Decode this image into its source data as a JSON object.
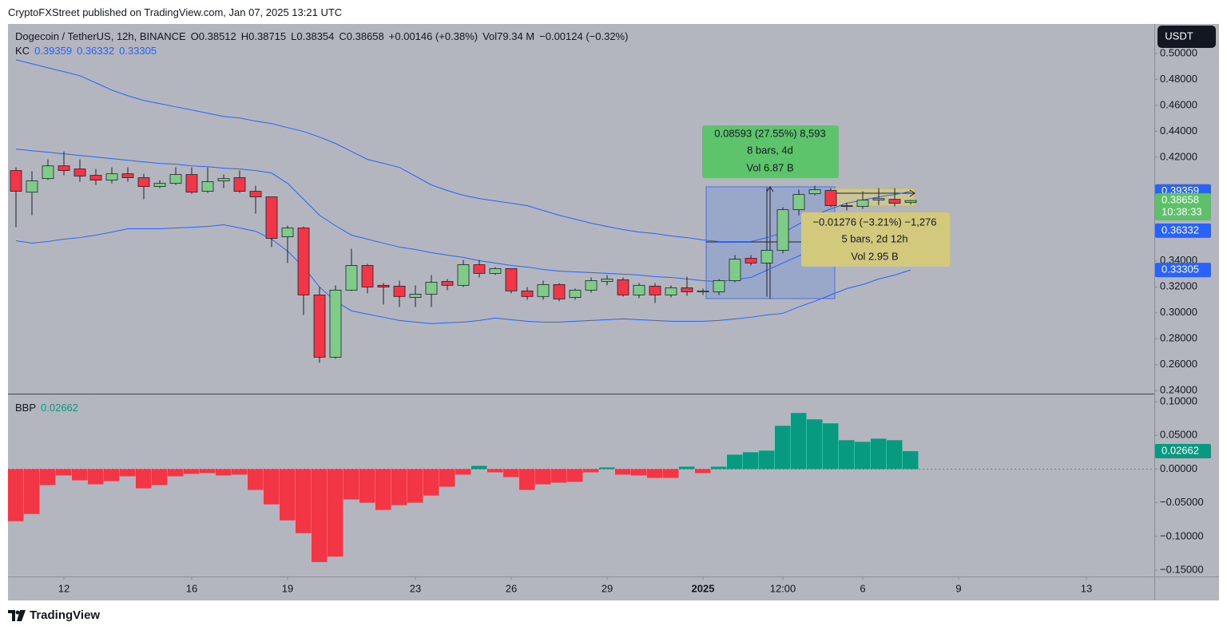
{
  "header": {
    "published": "CryptoFXStreet published on TradingView.com, Jan 07, 2025 13:21 UTC",
    "currency": "USDT",
    "brand": "TradingView"
  },
  "legend": {
    "symbol": "Dogecoin / TetherUS, 12h, BINANCE",
    "items": [
      "O0.38512",
      "H0.38715",
      "L0.38354",
      "C0.38658",
      "+0.00146 (+0.38%)",
      "Vol79.34 M",
      "−0.00124 (−0.32%)"
    ],
    "indicator": "KC",
    "indicator_values": [
      "0.39359",
      "0.36332",
      "0.33305"
    ]
  },
  "measure": {
    "up": [
      "0.08593 (27.55%) 8,593",
      "8 bars, 4d",
      "Vol 6.87 B"
    ],
    "down": [
      "−0.01276 (−3.21%) −1,276",
      "5 bars, 2d 12h",
      "Vol 2.95 B"
    ]
  },
  "chart_data": [
    {
      "type": "candlestick",
      "up_color": "#7fcc88",
      "down_color": "#f23645",
      "open": [
        0.4097,
        0.393,
        0.4035,
        0.4133,
        0.4109,
        0.406,
        0.4023,
        0.4072,
        0.4042,
        0.3974,
        0.3998,
        0.4066,
        0.3937,
        0.4017,
        0.4042,
        0.3937,
        0.3894,
        0.3586,
        0.3654,
        0.3138,
        0.2658,
        0.3175,
        0.3365,
        0.3212,
        0.3206,
        0.3119,
        0.3144,
        0.3242,
        0.3212,
        0.3371,
        0.3304,
        0.3341,
        0.3169,
        0.3126,
        0.3218,
        0.3119,
        0.3175,
        0.3242,
        0.3255,
        0.3138,
        0.3206,
        0.3138,
        0.3193,
        0.3162,
        0.3162,
        0.3248,
        0.342,
        0.3384,
        0.3482,
        0.3795,
        0.3918,
        0.3943,
        0.3826,
        0.382,
        0.3869,
        0.3875,
        0.38512
      ],
      "high": [
        0.4121,
        0.4091,
        0.4183,
        0.4244,
        0.4183,
        0.4109,
        0.4121,
        0.4121,
        0.4072,
        0.4023,
        0.4121,
        0.4121,
        0.4121,
        0.4066,
        0.4097,
        0.398,
        0.3894,
        0.3672,
        0.3666,
        0.3199,
        0.3212,
        0.3494,
        0.3377,
        0.323,
        0.3248,
        0.3212,
        0.3291,
        0.3261,
        0.3408,
        0.3408,
        0.3353,
        0.3341,
        0.3199,
        0.3248,
        0.323,
        0.3187,
        0.3273,
        0.3291,
        0.3273,
        0.323,
        0.323,
        0.3212,
        0.3279,
        0.3187,
        0.3261,
        0.3445,
        0.3445,
        0.3967,
        0.3814,
        0.3949,
        0.398,
        0.3961,
        0.385,
        0.3937,
        0.3961,
        0.3961,
        0.38715
      ],
      "low": [
        0.366,
        0.3752,
        0.4023,
        0.406,
        0.4011,
        0.3986,
        0.3998,
        0.4011,
        0.3875,
        0.3961,
        0.3986,
        0.3918,
        0.3924,
        0.3961,
        0.3924,
        0.3765,
        0.3507,
        0.3384,
        0.2984,
        0.2615,
        0.2646,
        0.3169,
        0.315,
        0.3064,
        0.3046,
        0.3046,
        0.3046,
        0.3175,
        0.3199,
        0.3273,
        0.3291,
        0.315,
        0.3101,
        0.3101,
        0.3089,
        0.3101,
        0.3156,
        0.3212,
        0.3126,
        0.3113,
        0.3076,
        0.3119,
        0.3132,
        0.3138,
        0.3138,
        0.3236,
        0.3365,
        0.3125,
        0.3457,
        0.3752,
        0.3906,
        0.3814,
        0.379,
        0.3801,
        0.3832,
        0.382,
        0.38354
      ],
      "close": [
        0.3937,
        0.4017,
        0.4133,
        0.4097,
        0.4054,
        0.4023,
        0.4072,
        0.4042,
        0.3974,
        0.3998,
        0.4066,
        0.393,
        0.4011,
        0.4035,
        0.3937,
        0.3894,
        0.3574,
        0.3654,
        0.3138,
        0.2658,
        0.3175,
        0.3365,
        0.3199,
        0.3199,
        0.3126,
        0.3144,
        0.3236,
        0.3212,
        0.3371,
        0.3304,
        0.3341,
        0.3169,
        0.3126,
        0.3218,
        0.3107,
        0.3175,
        0.3248,
        0.3261,
        0.3138,
        0.3212,
        0.3138,
        0.3193,
        0.3162,
        0.3169,
        0.3248,
        0.3414,
        0.3384,
        0.3482,
        0.3795,
        0.3912,
        0.3949,
        0.3826,
        0.382,
        0.3869,
        0.3881,
        0.3844,
        0.38658
      ],
      "series": [
        {
          "color": "#2962ff",
          "values": [
            0.4951,
            0.492,
            0.4889,
            0.4859,
            0.4828,
            0.4773,
            0.4717,
            0.4674,
            0.4637,
            0.4613,
            0.4588,
            0.4564,
            0.4539,
            0.4514,
            0.4502,
            0.4478,
            0.4459,
            0.4428,
            0.4398,
            0.4355,
            0.4306,
            0.4244,
            0.4183,
            0.4152,
            0.4121,
            0.4054,
            0.3986,
            0.3943,
            0.3906,
            0.3881,
            0.3863,
            0.3845,
            0.3826,
            0.3789,
            0.3752,
            0.3722,
            0.3691,
            0.3666,
            0.3642,
            0.3623,
            0.3611,
            0.3593,
            0.358,
            0.3562,
            0.355,
            0.355,
            0.355,
            0.358,
            0.3617,
            0.3685,
            0.3752,
            0.3802,
            0.3845,
            0.3869,
            0.3894,
            0.3912,
            0.39359
          ]
        },
        {
          "color": "#2962ff",
          "values": [
            0.4262,
            0.425,
            0.4238,
            0.4226,
            0.4213,
            0.4201,
            0.4189,
            0.4176,
            0.4164,
            0.4152,
            0.4146,
            0.4133,
            0.4127,
            0.4115,
            0.4109,
            0.4097,
            0.4078,
            0.3998,
            0.3875,
            0.3752,
            0.3672,
            0.3599,
            0.3568,
            0.3537,
            0.3507,
            0.3488,
            0.3464,
            0.3445,
            0.3427,
            0.3402,
            0.3384,
            0.3365,
            0.3353,
            0.3334,
            0.3322,
            0.3316,
            0.331,
            0.3304,
            0.3298,
            0.3291,
            0.3279,
            0.3273,
            0.3261,
            0.3248,
            0.3242,
            0.3255,
            0.3273,
            0.3328,
            0.3384,
            0.3439,
            0.3494,
            0.3531,
            0.3568,
            0.358,
            0.3599,
            0.3617,
            0.36332
          ]
        },
        {
          "color": "#2962ff",
          "values": [
            0.3556,
            0.3537,
            0.355,
            0.3568,
            0.358,
            0.3599,
            0.3623,
            0.3648,
            0.3648,
            0.3648,
            0.3654,
            0.366,
            0.3666,
            0.3679,
            0.3654,
            0.3629,
            0.3568,
            0.3476,
            0.3353,
            0.3199,
            0.3089,
            0.3015,
            0.299,
            0.2966,
            0.2941,
            0.2929,
            0.2917,
            0.2923,
            0.2929,
            0.2941,
            0.296,
            0.2947,
            0.2935,
            0.2929,
            0.2929,
            0.2935,
            0.2941,
            0.2947,
            0.2953,
            0.2947,
            0.2941,
            0.2935,
            0.2935,
            0.2935,
            0.2941,
            0.2953,
            0.2966,
            0.2984,
            0.2996,
            0.3046,
            0.3089,
            0.3138,
            0.3187,
            0.3218,
            0.3261,
            0.3291,
            0.33305
          ]
        }
      ],
      "xlim": [
        -0.5,
        71.25
      ],
      "xticks": [
        {
          "value": 3,
          "label": "12"
        },
        {
          "value": 11,
          "label": "16"
        },
        {
          "value": 17,
          "label": "19"
        },
        {
          "value": 25,
          "label": "23"
        },
        {
          "value": 31,
          "label": "26"
        },
        {
          "value": 37,
          "label": "29"
        },
        {
          "value": 43,
          "label": "2025"
        },
        {
          "value": 48,
          "label": "12:00"
        },
        {
          "value": 53,
          "label": "6"
        },
        {
          "value": 59,
          "label": "9"
        },
        {
          "value": 67,
          "label": "13"
        }
      ],
      "ylim": [
        0.2377,
        0.5227
      ],
      "yticks": [
        {
          "value": 0.5,
          "label": "0.50000"
        },
        {
          "value": 0.48,
          "label": "0.48000"
        },
        {
          "value": 0.46,
          "label": "0.46000"
        },
        {
          "value": 0.44,
          "label": "0.44000"
        },
        {
          "value": 0.42,
          "label": "0.42000"
        },
        {
          "value": 0.34,
          "label": "0.34000"
        },
        {
          "value": 0.32,
          "label": "0.32000"
        },
        {
          "value": 0.3,
          "label": "0.30000"
        },
        {
          "value": 0.28,
          "label": "0.28000"
        },
        {
          "value": 0.26,
          "label": "0.26000"
        },
        {
          "value": 0.24,
          "label": "0.24000"
        }
      ],
      "price_labels": [
        {
          "value": 0.39359,
          "label": "0.39359",
          "color": "#2962ff"
        },
        {
          "value": 0.38658,
          "label": "0.38658",
          "color": "#5fbf6b",
          "countdown": "10:38:33"
        },
        {
          "value": 0.36332,
          "label": "0.36332",
          "color": "#2962ff"
        },
        {
          "value": 0.33305,
          "label": "0.33305",
          "color": "#2962ff"
        }
      ]
    },
    {
      "type": "histogram",
      "title": "BBP",
      "legend_value": "0.02662",
      "pos_color": "#089981",
      "neg_color": "#f23645",
      "values": [
        -0.0774,
        -0.0667,
        -0.0238,
        -0.0095,
        -0.0167,
        -0.0226,
        -0.0179,
        -0.0107,
        -0.0286,
        -0.0238,
        -0.0107,
        -0.0071,
        -0.006,
        -0.0095,
        -0.0083,
        -0.031,
        -0.0524,
        -0.0762,
        -0.0952,
        -0.1381,
        -0.1298,
        -0.0452,
        -0.05,
        -0.0607,
        -0.0536,
        -0.05,
        -0.0393,
        -0.0262,
        -0.0083,
        0.0048,
        -0.0048,
        -0.0119,
        -0.031,
        -0.0226,
        -0.0202,
        -0.019,
        -0.0048,
        0.0024,
        -0.0083,
        -0.0095,
        -0.0131,
        -0.0131,
        0.0036,
        -0.006,
        0.0036,
        0.0214,
        0.025,
        0.0274,
        0.0643,
        0.0833,
        0.0738,
        0.0679,
        0.0429,
        0.0405,
        0.0452,
        0.0429,
        0.02662
      ],
      "xlim": [
        -0.5,
        71.25
      ],
      "ylim": [
        -0.1595,
        0.112
      ],
      "yticks": [
        {
          "value": 0.1,
          "label": "0.10000"
        },
        {
          "value": 0.05,
          "label": "0.05000"
        },
        {
          "value": 0,
          "label": "0.00000"
        },
        {
          "value": -0.05,
          "label": "−0.05000"
        },
        {
          "value": -0.1,
          "label": "−0.10000"
        },
        {
          "value": -0.15,
          "label": "−0.15000"
        }
      ],
      "zero_line": true,
      "price_labels": [
        {
          "value": 0.02662,
          "label": "0.02662",
          "color": "#089981"
        }
      ]
    }
  ]
}
